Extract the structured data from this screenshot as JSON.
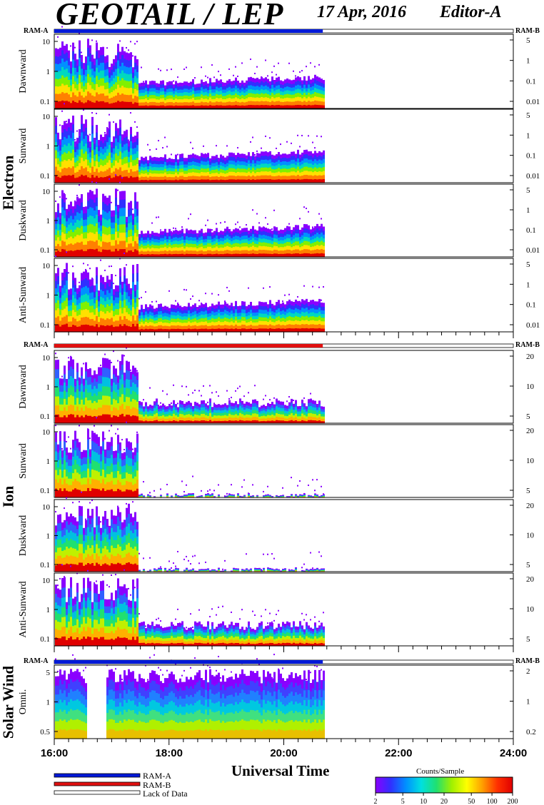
{
  "header": {
    "title": "GEOTAIL / LEP",
    "date": "17 Apr, 2016",
    "editor": "Editor-A"
  },
  "ram_labels": {
    "left": "RAM-A",
    "right": "RAM-B"
  },
  "groups": {
    "electron": "Electron",
    "ion": "Ion",
    "solar_wind": "Solar Wind"
  },
  "colors": {
    "ram_a": "#0019d8",
    "ram_b": "#e01010",
    "colorbar_stops": [
      "#8a00ff",
      "#3030ff",
      "#0090ff",
      "#00e0e0",
      "#20e070",
      "#a0f000",
      "#ffff00",
      "#ffa000",
      "#ff3000",
      "#e00000"
    ]
  },
  "legend": {
    "items": [
      {
        "label": "RAM-A",
        "color": "#0019d8"
      },
      {
        "label": "RAM-B",
        "color": "#e01010"
      },
      {
        "label": "Lack of Data",
        "color": "#ffffff"
      }
    ],
    "colorbar_title": "Counts/Sample",
    "colorbar_ticks": [
      "2",
      "5",
      "10",
      "20",
      "50",
      "100",
      "200"
    ]
  },
  "chart_data": {
    "type": "heatmap",
    "xlabel": "Universal Time",
    "xlim": [
      16,
      24
    ],
    "x_ticks": [
      "16:00",
      "18:00",
      "20:00",
      "22:00",
      "24:00"
    ],
    "data_end_hour": 20.68,
    "panels": [
      {
        "group": "electron",
        "ylabel": "Dawnward",
        "yticks": [
          "10",
          "1",
          "0.1"
        ],
        "right_ticks": [
          "5",
          "1",
          "0.1",
          "0.01"
        ],
        "ram_bar": "A"
      },
      {
        "group": "electron",
        "ylabel": "Sunward",
        "yticks": [
          "10",
          "1",
          "0.1"
        ],
        "right_ticks": [
          "5",
          "1",
          "0.1",
          "0.01"
        ]
      },
      {
        "group": "electron",
        "ylabel": "Duskward",
        "yticks": [
          "10",
          "1",
          "0.1"
        ],
        "right_ticks": [
          "5",
          "1",
          "0.1",
          "0.01"
        ]
      },
      {
        "group": "electron",
        "ylabel": "Anti-Sunward",
        "yticks": [
          "10",
          "1",
          "0.1"
        ],
        "right_ticks": [
          "5",
          "1",
          "0.1",
          "0.01"
        ]
      },
      {
        "group": "ion",
        "ylabel": "Dawnward",
        "yticks": [
          "10",
          "1",
          "0.1"
        ],
        "right_ticks": [
          "20",
          "10",
          "5"
        ],
        "ram_bar": "B"
      },
      {
        "group": "ion",
        "ylabel": "Sunward",
        "yticks": [
          "10",
          "1",
          "0.1"
        ],
        "right_ticks": [
          "20",
          "10",
          "5"
        ]
      },
      {
        "group": "ion",
        "ylabel": "Duskward",
        "yticks": [
          "10",
          "1",
          "0.1"
        ],
        "right_ticks": [
          "20",
          "10",
          "5"
        ]
      },
      {
        "group": "ion",
        "ylabel": "Anti-Sunward",
        "yticks": [
          "10",
          "1",
          "0.1"
        ],
        "right_ticks": [
          "20",
          "10",
          "5"
        ]
      },
      {
        "group": "solar_wind",
        "ylabel": "Omni.",
        "yticks": [
          "5",
          "1",
          "0.5"
        ],
        "right_ticks": [
          "2",
          "1",
          "0.2"
        ],
        "ram_bar": "A"
      }
    ]
  }
}
